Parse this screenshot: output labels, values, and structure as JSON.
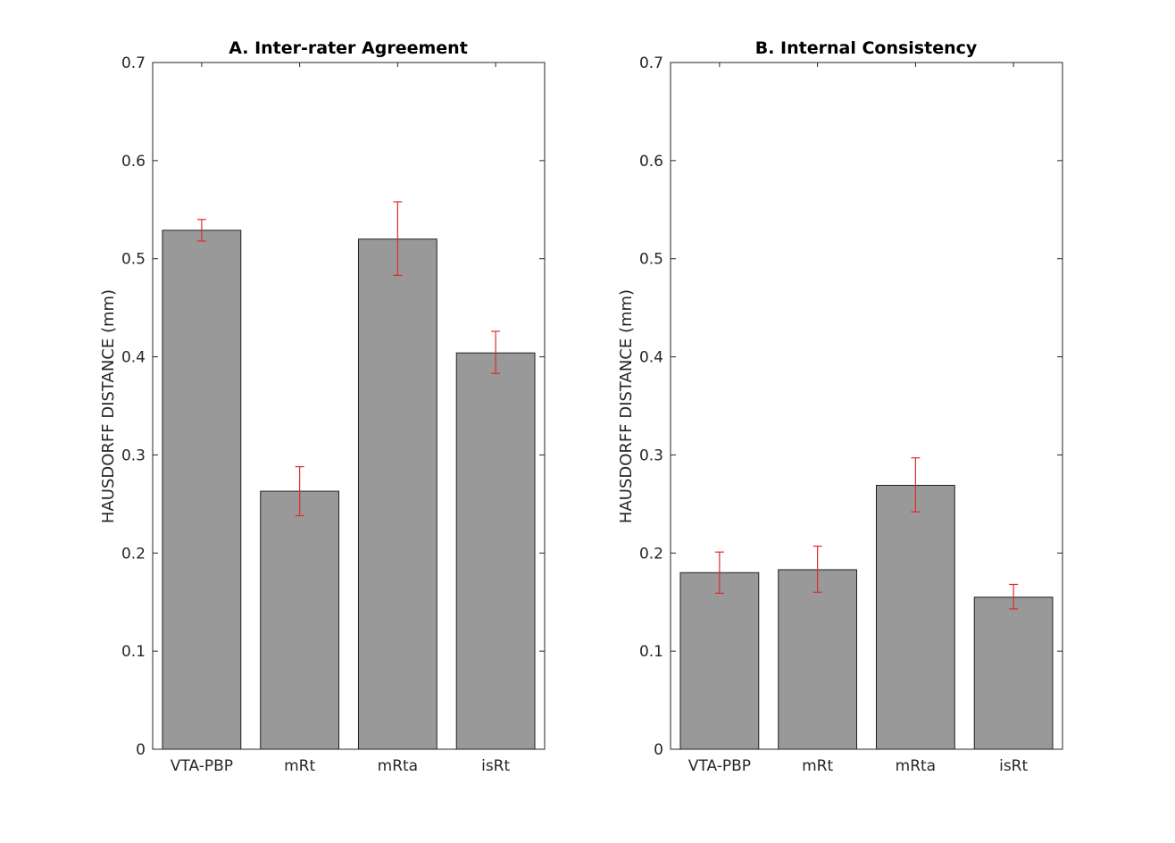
{
  "colors": {
    "bar_fill": "#999999",
    "bar_stroke": "#222222",
    "error_bar": "#e02a2a",
    "axis": "#262626"
  },
  "chart_data": [
    {
      "type": "bar",
      "title": "A. Inter-rater Agreement",
      "xlabel": "",
      "ylabel": "HAUSDORFF DISTANCE (mm)",
      "categories": [
        "VTA-PBP",
        "mRt",
        "mRta",
        "isRt"
      ],
      "values": [
        0.529,
        0.263,
        0.52,
        0.404
      ],
      "error_low": [
        0.518,
        0.238,
        0.483,
        0.383
      ],
      "error_high": [
        0.54,
        0.288,
        0.558,
        0.426
      ],
      "ylim": [
        0,
        0.7
      ],
      "yticks": [
        0,
        0.1,
        0.2,
        0.3,
        0.4,
        0.5,
        0.6,
        0.7
      ],
      "ytick_labels": [
        "0",
        "0.1",
        "0.2",
        "0.3",
        "0.4",
        "0.5",
        "0.6",
        "0.7"
      ],
      "grid": false
    },
    {
      "type": "bar",
      "title": "B. Internal Consistency",
      "xlabel": "",
      "ylabel": "HAUSDORFF DISTANCE (mm)",
      "categories": [
        "VTA-PBP",
        "mRt",
        "mRta",
        "isRt"
      ],
      "values": [
        0.18,
        0.183,
        0.269,
        0.155
      ],
      "error_low": [
        0.159,
        0.16,
        0.242,
        0.143
      ],
      "error_high": [
        0.201,
        0.207,
        0.297,
        0.168
      ],
      "ylim": [
        0,
        0.7
      ],
      "yticks": [
        0,
        0.1,
        0.2,
        0.3,
        0.4,
        0.5,
        0.6,
        0.7
      ],
      "ytick_labels": [
        "0",
        "0.1",
        "0.2",
        "0.3",
        "0.4",
        "0.5",
        "0.6",
        "0.7"
      ],
      "grid": false
    }
  ]
}
